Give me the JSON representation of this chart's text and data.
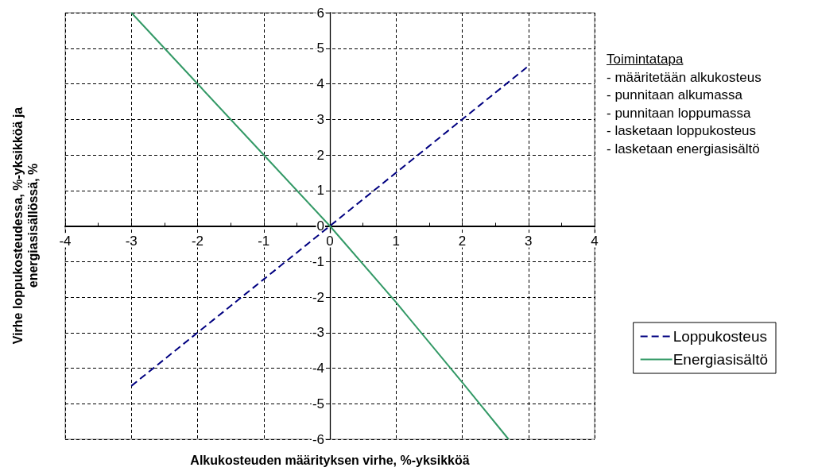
{
  "chart_data": {
    "type": "line",
    "xlabel": "Alkukosteuden määrityksen virhe, %-yksikköä",
    "ylabel": "Virhe loppukosteudessa, %-yksikköä ja energiasisällössä, %",
    "annotations": [
      "Toimintatapa",
      "- määritetään alkukosteus",
      "- punnitaan alkumassa",
      "- punnitaan loppumassa",
      "- lasketaan loppukosteus",
      "- lasketaan energiasisältö"
    ],
    "series": [
      {
        "name": "Loppukosteus",
        "color": "#000080",
        "line_style": "dashed",
        "x": [
          -3,
          -2,
          -1,
          0,
          1,
          2,
          3
        ],
        "values": [
          -4.5,
          -3,
          -1.5,
          0,
          1.5,
          3,
          4.5
        ]
      },
      {
        "name": "Energiasisältö",
        "color": "#339966",
        "line_style": "solid",
        "x": [
          -3,
          -2,
          -1,
          0,
          1,
          2,
          2.7
        ],
        "values": [
          6,
          4,
          2,
          0,
          -2.15,
          -4.4,
          -6
        ]
      }
    ],
    "xlim": [
      -4,
      4
    ],
    "xticks": [
      -4,
      -3,
      -2,
      -1,
      0,
      1,
      2,
      3,
      4
    ],
    "ylim": [
      -6,
      6
    ],
    "yticks": [
      -6,
      -5,
      -4,
      -3,
      -2,
      -1,
      0,
      1,
      2,
      3,
      4,
      5,
      6
    ],
    "grid": true,
    "legend": "right",
    "marker": "none"
  }
}
